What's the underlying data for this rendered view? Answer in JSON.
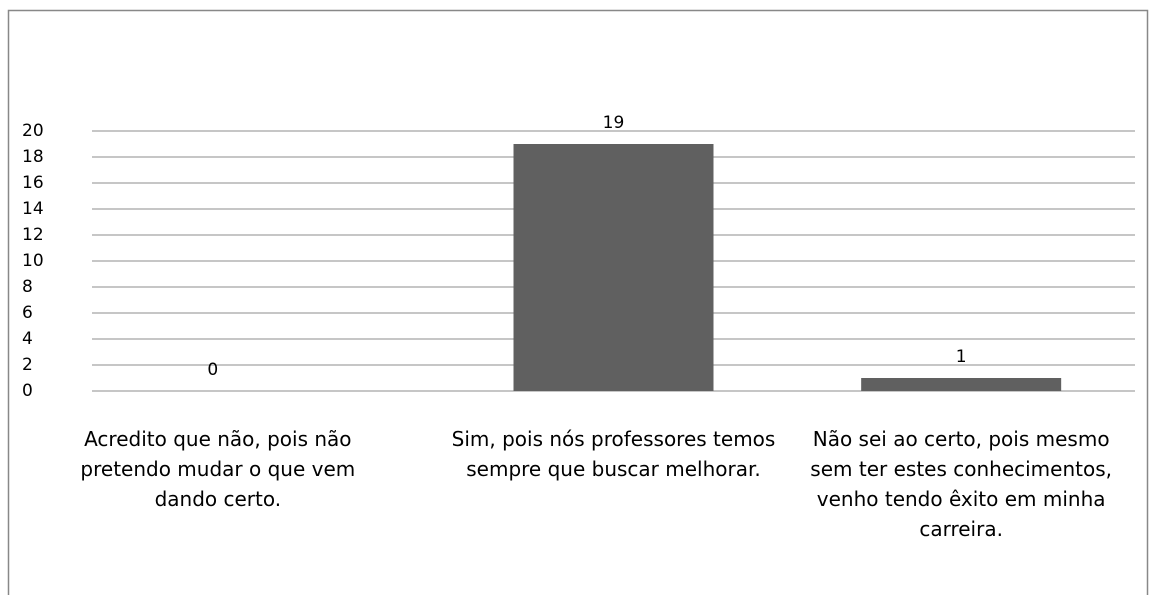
{
  "chart_data": {
    "type": "bar",
    "categories": [
      "Acredito que não, pois não pretendo mudar o que vem dando certo.",
      "Sim, pois nós professores temos sempre que buscar melhorar.",
      "Não sei ao certo, pois mesmo sem ter estes conhecimentos, venho tendo êxito em minha carreira."
    ],
    "values": [
      0,
      19,
      1
    ],
    "color": "#606060",
    "ylim": [
      0,
      20
    ],
    "yticks": [
      0,
      2,
      4,
      6,
      8,
      10,
      12,
      14,
      16,
      18,
      20
    ],
    "grid": true
  }
}
